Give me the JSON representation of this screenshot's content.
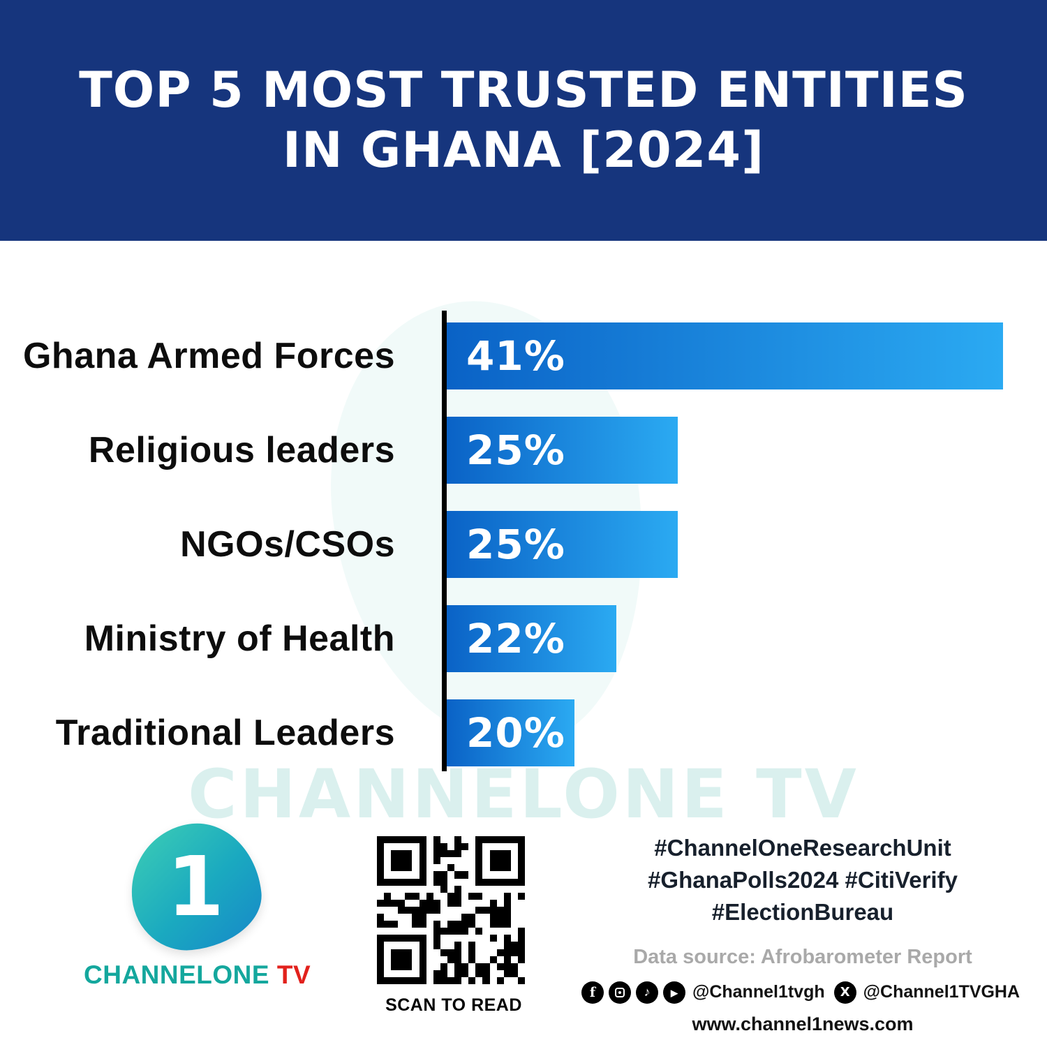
{
  "header": {
    "title_line1": "TOP 5 MOST TRUSTED ENTITIES",
    "title_line2": "IN GHANA [2024]",
    "background_color": "#16357D"
  },
  "chart_data": {
    "type": "bar",
    "orientation": "horizontal",
    "title": "Top 5 Most Trusted Entities in Ghana [2024]",
    "categories": [
      "Ghana Armed Forces",
      "Religious leaders",
      "NGOs/CSOs",
      "Ministry of Health",
      "Traditional Leaders"
    ],
    "values": [
      41,
      25,
      25,
      22,
      20
    ],
    "value_labels": [
      "41%",
      "25%",
      "25%",
      "22%",
      "20%"
    ],
    "unit": "percent",
    "display_widths": [
      100,
      41.5,
      41.5,
      30.5,
      23
    ],
    "bar_gradient": [
      "#0A62C6",
      "#2BAAF2"
    ],
    "axis_color": "#000000",
    "grid": false,
    "legend": "none"
  },
  "watermark": {
    "text": "CHANNELONE TV"
  },
  "footer": {
    "logo": {
      "numeral": "1",
      "brand_teal": "CHANNELONE",
      "brand_red": " TV"
    },
    "qr": {
      "caption": "SCAN TO READ"
    },
    "hashtags": [
      "#ChannelOneResearchUnit",
      "#GhanaPolls2024 #CitiVerify",
      "#ElectionBureau"
    ],
    "data_source": "Data source: Afrobarometer Report",
    "social": {
      "icons": [
        "facebook-icon",
        "instagram-icon",
        "tiktok-icon",
        "youtube-icon",
        "x-icon"
      ],
      "handle_primary": "@Channel1tvgh",
      "handle_x": "@Channel1TVGHA"
    },
    "website": "www.channel1news.com"
  }
}
